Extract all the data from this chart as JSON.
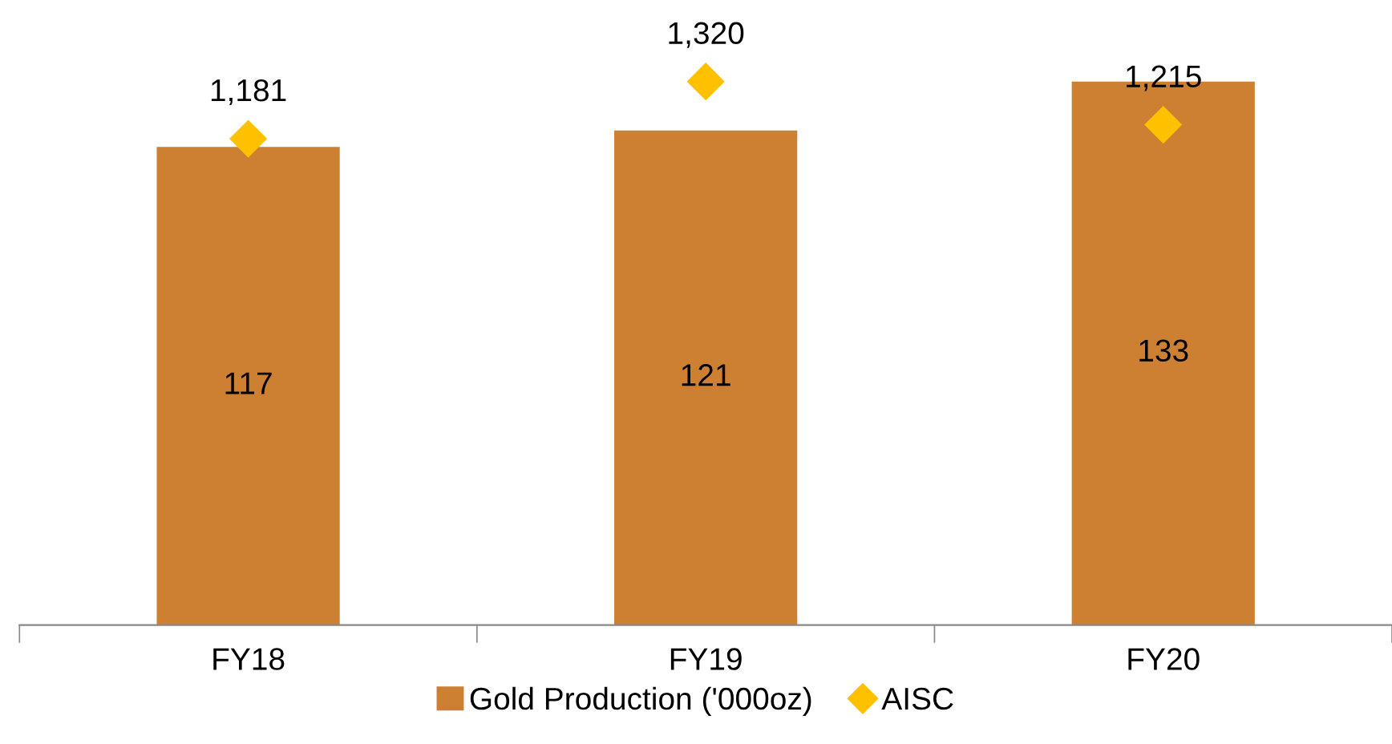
{
  "chart_data": {
    "type": "bar",
    "categories": [
      "FY18",
      "FY19",
      "FY20"
    ],
    "tick_labels": "x",
    "legend": "bottom",
    "series": [
      {
        "name": "Gold Production ('000oz)",
        "color": "#cd7f32",
        "values": [
          117,
          121,
          133
        ],
        "value_labels": [
          "117",
          "121",
          "133"
        ]
      },
      {
        "name": "AISC",
        "type": "scatter",
        "axis": "y2",
        "marker": "diamond",
        "color": "#ffc000",
        "values": [
          1181,
          1320,
          1215
        ],
        "value_labels": [
          "1,181",
          "1,320",
          "1,215"
        ]
      }
    ]
  }
}
